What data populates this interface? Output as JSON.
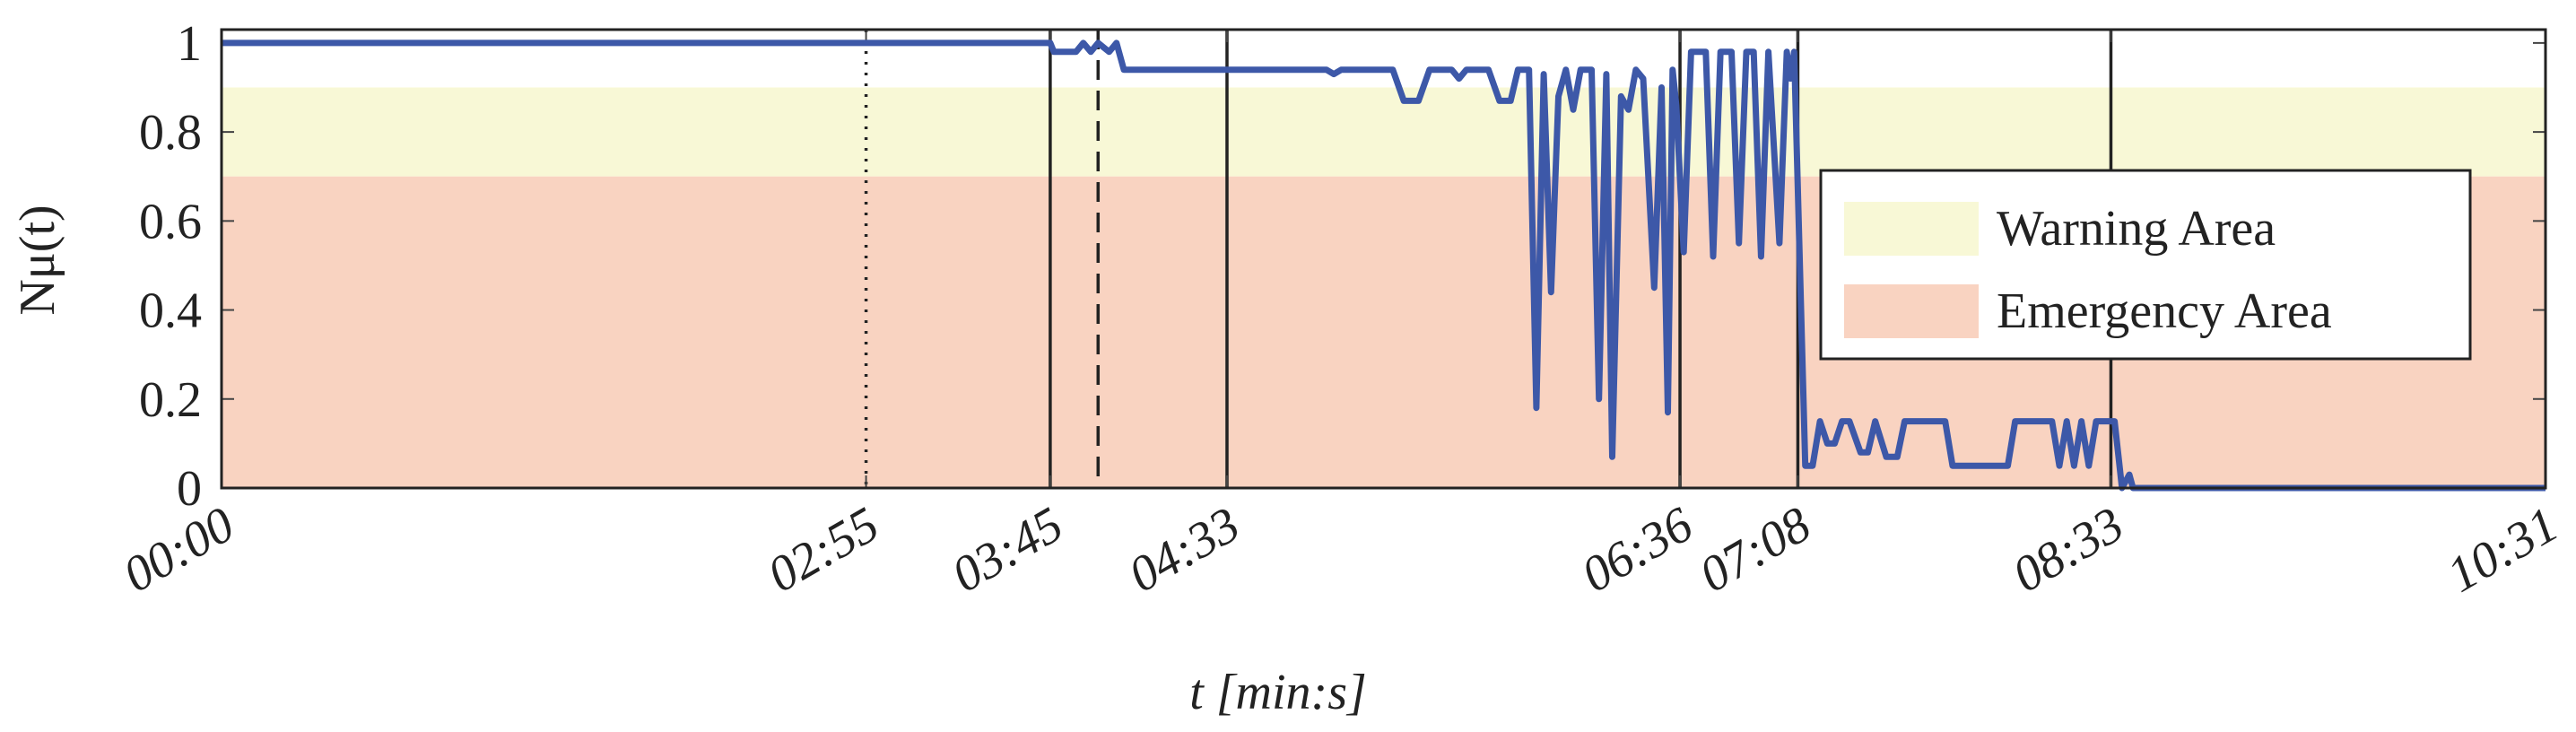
{
  "chart_data": {
    "type": "line",
    "x_label": "t [min:s]",
    "y_label": "Nμ(t)",
    "xlim": [
      0,
      631
    ],
    "ylim": [
      0,
      1.03
    ],
    "xticks": [
      {
        "value": 0,
        "label": "00:00"
      },
      {
        "value": 175,
        "label": "02:55"
      },
      {
        "value": 225,
        "label": "03:45"
      },
      {
        "value": 273,
        "label": "04:33"
      },
      {
        "value": 396,
        "label": "06:36"
      },
      {
        "value": 428,
        "label": "07:08"
      },
      {
        "value": 513,
        "label": "08:33"
      },
      {
        "value": 631,
        "label": "10:31"
      }
    ],
    "yticks": [
      0,
      0.2,
      0.4,
      0.6,
      0.8,
      1
    ],
    "grid": false,
    "legend_position": "upper right",
    "bands": [
      {
        "name": "Warning Area",
        "from": 0.7,
        "to": 0.9,
        "color": "#f8f8d6"
      },
      {
        "name": "Emergency Area",
        "from": 0,
        "to": 0.7,
        "color": "#f9d3c1"
      }
    ],
    "vlines": [
      {
        "x": 175,
        "style": "dotted"
      },
      {
        "x": 225,
        "style": "solid"
      },
      {
        "x": 238,
        "style": "dashed"
      },
      {
        "x": 273,
        "style": "solid"
      },
      {
        "x": 396,
        "style": "solid"
      },
      {
        "x": 428,
        "style": "solid"
      },
      {
        "x": 513,
        "style": "solid"
      }
    ],
    "series": [
      {
        "color": "#3d58a8",
        "x": [
          0,
          225,
          226,
          232,
          234,
          236,
          238,
          241,
          243,
          245,
          300,
          302,
          304,
          318,
          321,
          325,
          328,
          334,
          336,
          338,
          344,
          347,
          350,
          352,
          355,
          357,
          359,
          361,
          363,
          365,
          367,
          369,
          372,
          374,
          376,
          377.6,
          380,
          382,
          384,
          386,
          389,
          391,
          392.7,
          394,
          395,
          397,
          399,
          403,
          405,
          407,
          410,
          412,
          414,
          416,
          418,
          420,
          423,
          425,
          426,
          427,
          430,
          432,
          434,
          436,
          438,
          440,
          442,
          445,
          447,
          449,
          452,
          455,
          457,
          459,
          468,
          470,
          472,
          485,
          487,
          489,
          497,
          499,
          501,
          503,
          505,
          507,
          509,
          511,
          514,
          516,
          518,
          519,
          520,
          631
        ],
        "values": [
          1,
          1,
          0.98,
          0.98,
          1,
          0.98,
          1,
          0.98,
          1,
          0.94,
          0.94,
          0.93,
          0.94,
          0.94,
          0.87,
          0.87,
          0.94,
          0.94,
          0.92,
          0.94,
          0.94,
          0.87,
          0.87,
          0.94,
          0.94,
          0.18,
          0.93,
          0.44,
          0.88,
          0.94,
          0.85,
          0.94,
          0.94,
          0.2,
          0.93,
          0.07,
          0.88,
          0.85,
          0.94,
          0.92,
          0.45,
          0.9,
          0.17,
          0.94,
          0.86,
          0.53,
          0.98,
          0.98,
          0.52,
          0.98,
          0.98,
          0.55,
          0.98,
          0.98,
          0.52,
          0.98,
          0.55,
          0.98,
          0.92,
          0.98,
          0.05,
          0.05,
          0.15,
          0.1,
          0.1,
          0.15,
          0.15,
          0.08,
          0.08,
          0.15,
          0.07,
          0.07,
          0.15,
          0.15,
          0.15,
          0.05,
          0.05,
          0.05,
          0.15,
          0.15,
          0.15,
          0.05,
          0.15,
          0.05,
          0.15,
          0.05,
          0.15,
          0.15,
          0.15,
          0,
          0.03,
          0,
          0,
          0
        ]
      }
    ]
  }
}
